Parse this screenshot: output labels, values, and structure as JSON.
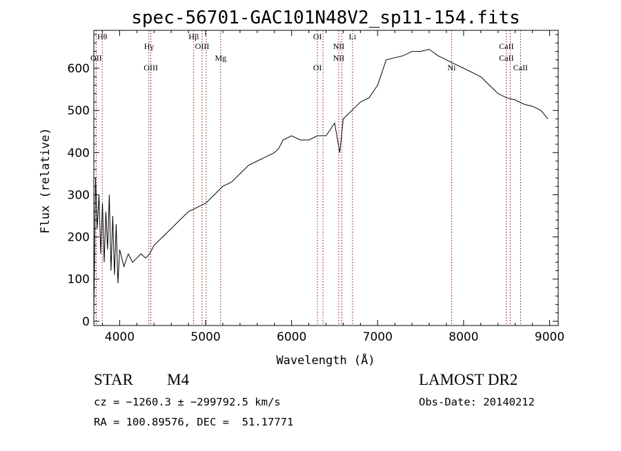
{
  "chart_data": {
    "type": "line",
    "title": "spec-56701-GAC101N48V2_sp11-154.fits",
    "xlabel": "Wavelength (Å)",
    "ylabel": "Flux (relative)",
    "xlim": [
      3700,
      9100
    ],
    "ylim": [
      -10,
      690
    ],
    "x_ticks": [
      4000,
      5000,
      6000,
      7000,
      8000,
      9000
    ],
    "y_ticks": [
      0,
      100,
      200,
      300,
      400,
      500,
      600
    ],
    "x_minor_step": 200,
    "y_minor_step": 20,
    "grid": false,
    "series": [
      {
        "x": [
          3700,
          3720,
          3740,
          3760,
          3780,
          3800,
          3820,
          3840,
          3860,
          3880,
          3900,
          3920,
          3940,
          3960,
          3980,
          4000,
          4050,
          4100,
          4150,
          4200,
          4250,
          4300,
          4350,
          4400,
          4500,
          4600,
          4700,
          4800,
          4900,
          5000,
          5100,
          5200,
          5300,
          5400,
          5500,
          5600,
          5700,
          5800,
          5850,
          5900,
          6000,
          6100,
          6200,
          6300,
          6400,
          6500,
          6560,
          6600,
          6700,
          6800,
          6900,
          7000,
          7050,
          7100,
          7200,
          7300,
          7400,
          7500,
          7600,
          7700,
          7800,
          7900,
          8000,
          8100,
          8200,
          8300,
          8400,
          8500,
          8600,
          8700,
          8800,
          8900,
          8980
        ],
        "y": [
          20,
          340,
          220,
          300,
          160,
          280,
          140,
          260,
          170,
          300,
          120,
          250,
          110,
          230,
          90,
          170,
          130,
          160,
          140,
          150,
          160,
          150,
          160,
          180,
          200,
          220,
          240,
          260,
          270,
          280,
          300,
          320,
          330,
          350,
          370,
          380,
          390,
          400,
          410,
          430,
          440,
          430,
          430,
          440,
          440,
          470,
          400,
          480,
          500,
          520,
          530,
          560,
          590,
          620,
          625,
          630,
          640,
          640,
          645,
          630,
          620,
          610,
          600,
          590,
          580,
          560,
          540,
          530,
          525,
          515,
          510,
          500,
          480
        ],
        "color": "#000000"
      }
    ]
  },
  "line_markers": [
    {
      "wavelength": 3727,
      "upper": "",
      "lower": "OII"
    },
    {
      "wavelength": 3798,
      "upper": "Hθ",
      "lower": ""
    },
    {
      "wavelength": 4340,
      "upper": "Hγ",
      "lower": ""
    },
    {
      "wavelength": 4363,
      "upper": "",
      "lower": "OIII"
    },
    {
      "wavelength": 4861,
      "upper": "Hβ",
      "lower": ""
    },
    {
      "wavelength": 4959,
      "upper": "OIII",
      "lower": ""
    },
    {
      "wavelength": 5007,
      "upper": "",
      "lower": ""
    },
    {
      "wavelength": 5175,
      "upper": "",
      "lower": "Mg"
    },
    {
      "wavelength": 6300,
      "upper": "OI",
      "lower": "OI"
    },
    {
      "wavelength": 6364,
      "upper": "",
      "lower": ""
    },
    {
      "wavelength": 6548,
      "upper": "NII",
      "lower": "NII"
    },
    {
      "wavelength": 6584,
      "upper": "",
      "lower": ""
    },
    {
      "wavelength": 6708,
      "upper": "Li",
      "lower": ""
    },
    {
      "wavelength": 7860,
      "upper": "",
      "lower": "Ni"
    },
    {
      "wavelength": 8498,
      "upper": "CaII",
      "lower": "CaII"
    },
    {
      "wavelength": 8542,
      "upper": "",
      "lower": ""
    },
    {
      "wavelength": 8662,
      "upper": "",
      "lower": "CaII"
    }
  ],
  "marker_color": "#8b0000",
  "info": {
    "class": "STAR",
    "subclass": "M4",
    "survey": "LAMOST DR2",
    "cz": "cz = −1260.3 ± −299792.5 km/s",
    "obs_date": "Obs-Date: 20140212",
    "radec": "RA = 100.89576, DEC =  51.17771"
  }
}
